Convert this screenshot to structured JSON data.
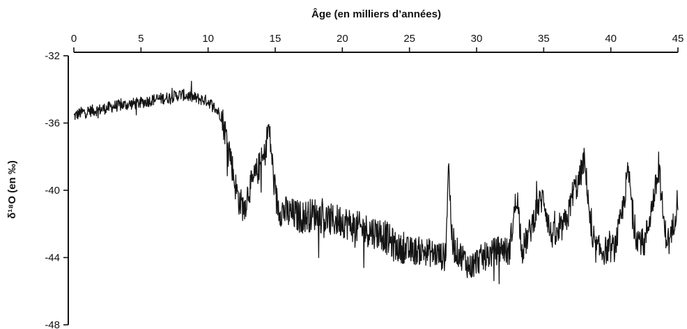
{
  "chart_data": {
    "type": "line",
    "xlabel": "Âge (en milliers d’années)",
    "ylabel": "δ¹⁸O (en ‰)",
    "x_axis_position": "top",
    "x_reversed": false,
    "y_reversed": false,
    "xlim": [
      0,
      45
    ],
    "ylim": [
      -48,
      -32
    ],
    "x_ticks": [
      0,
      5,
      10,
      15,
      20,
      25,
      30,
      35,
      40,
      45
    ],
    "y_ticks": [
      -32,
      -36,
      -40,
      -44,
      -48
    ],
    "grid": false,
    "series": [
      {
        "color": "#141414",
        "anchors": [
          [
            0.0,
            -35.6
          ],
          [
            0.5,
            -35.4
          ],
          [
            1.0,
            -35.3
          ],
          [
            2.0,
            -35.2
          ],
          [
            3.0,
            -35.0
          ],
          [
            4.0,
            -34.9
          ],
          [
            5.0,
            -34.8
          ],
          [
            6.0,
            -34.6
          ],
          [
            7.0,
            -34.5
          ],
          [
            8.0,
            -34.3
          ],
          [
            9.0,
            -34.5
          ],
          [
            10.0,
            -34.7
          ],
          [
            10.5,
            -35.1
          ],
          [
            11.0,
            -35.6
          ],
          [
            11.3,
            -36.6
          ],
          [
            11.6,
            -37.6
          ],
          [
            12.0,
            -39.6
          ],
          [
            12.3,
            -40.6
          ],
          [
            12.7,
            -41.1
          ],
          [
            13.0,
            -40.0
          ],
          [
            13.3,
            -39.6
          ],
          [
            13.8,
            -38.6
          ],
          [
            14.2,
            -38.0
          ],
          [
            14.5,
            -36.2
          ],
          [
            14.7,
            -37.6
          ],
          [
            15.0,
            -40.4
          ],
          [
            15.3,
            -41.1
          ],
          [
            16.0,
            -41.4
          ],
          [
            17.0,
            -41.6
          ],
          [
            18.0,
            -41.4
          ],
          [
            19.0,
            -41.8
          ],
          [
            20.0,
            -41.8
          ],
          [
            21.0,
            -42.2
          ],
          [
            22.0,
            -42.4
          ],
          [
            23.0,
            -42.6
          ],
          [
            24.0,
            -43.4
          ],
          [
            25.0,
            -43.6
          ],
          [
            26.0,
            -43.6
          ],
          [
            27.0,
            -43.8
          ],
          [
            27.7,
            -44.0
          ],
          [
            27.9,
            -38.3
          ],
          [
            28.2,
            -43.4
          ],
          [
            29.0,
            -44.0
          ],
          [
            29.5,
            -44.6
          ],
          [
            30.0,
            -44.2
          ],
          [
            31.0,
            -43.8
          ],
          [
            32.0,
            -43.4
          ],
          [
            32.4,
            -43.8
          ],
          [
            33.0,
            -40.2
          ],
          [
            33.4,
            -43.6
          ],
          [
            34.0,
            -42.4
          ],
          [
            34.5,
            -41.0
          ],
          [
            35.0,
            -40.4
          ],
          [
            35.5,
            -42.6
          ],
          [
            36.0,
            -42.8
          ],
          [
            36.8,
            -41.6
          ],
          [
            37.2,
            -40.0
          ],
          [
            37.6,
            -39.6
          ],
          [
            38.0,
            -38.2
          ],
          [
            38.3,
            -40.2
          ],
          [
            38.6,
            -43.4
          ],
          [
            39.5,
            -43.6
          ],
          [
            40.3,
            -43.4
          ],
          [
            40.8,
            -41.6
          ],
          [
            41.3,
            -38.8
          ],
          [
            41.8,
            -42.6
          ],
          [
            42.5,
            -43.2
          ],
          [
            43.0,
            -41.2
          ],
          [
            43.6,
            -38.8
          ],
          [
            44.0,
            -42.4
          ],
          [
            44.4,
            -43.2
          ],
          [
            44.8,
            -41.4
          ],
          [
            45.0,
            -40.4
          ]
        ]
      }
    ]
  }
}
